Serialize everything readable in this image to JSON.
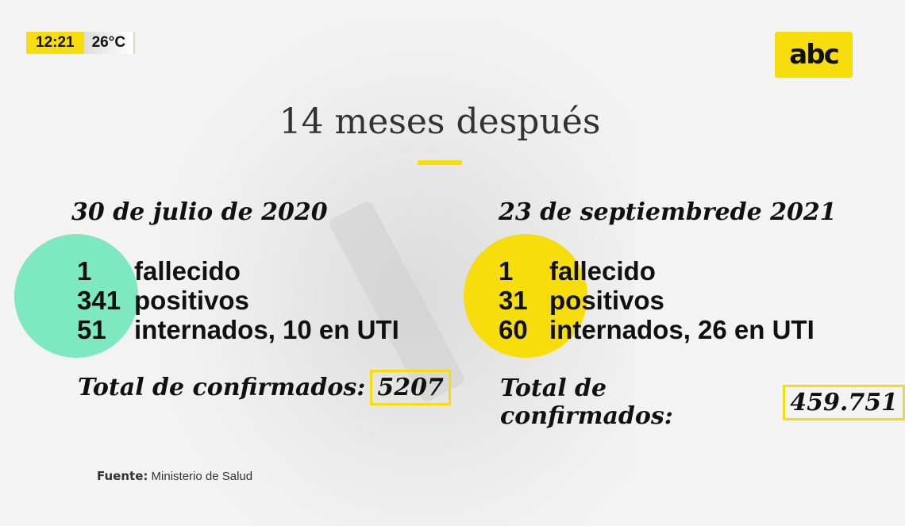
{
  "header": {
    "time": "12:21",
    "temperature": "26°C",
    "logo": "abc"
  },
  "title": "14 meses después",
  "left": {
    "date": "30 de julio de 2020",
    "circle_color": "#7ee8c0",
    "stats": [
      {
        "n": "1",
        "label": "fallecido"
      },
      {
        "n": "341",
        "label": "positivos"
      },
      {
        "n": "51",
        "label": "internados, 10 en UTI"
      }
    ],
    "total_label": "Total de confirmados:",
    "total_value": "5207"
  },
  "right": {
    "date": "23 de septiembrede 2021",
    "circle_color": "#f7dd0b",
    "stats": [
      {
        "n": "1",
        "label": "fallecido"
      },
      {
        "n": "31",
        "label": "positivos"
      },
      {
        "n": "60",
        "label": "internados, 26 en UTI"
      }
    ],
    "total_label": "Total de confirmados:",
    "total_value": "459.751"
  },
  "source": {
    "label": "Fuente:",
    "value": "Ministerio de Salud"
  },
  "colors": {
    "accent": "#f7dd0b",
    "mint": "#7ee8c0"
  }
}
